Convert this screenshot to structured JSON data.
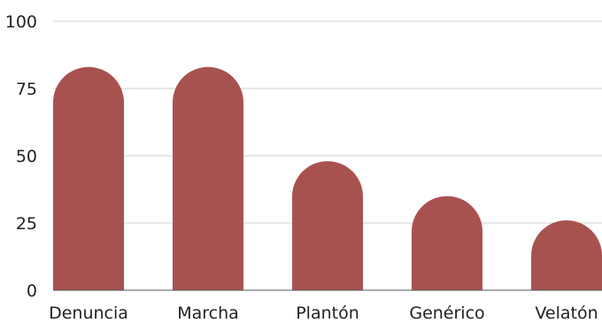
{
  "chart_data": {
    "type": "bar",
    "categories": [
      "Denuncia",
      "Marcha",
      "Plantón",
      "Genérico",
      "Velatón"
    ],
    "values": [
      83,
      83,
      48,
      35,
      26
    ],
    "ylim": [
      0,
      100
    ],
    "yticks": [
      0,
      25,
      50,
      75,
      100
    ],
    "grid": true,
    "legend": "none",
    "bar_color": "#a85250",
    "bar_shape": "rounded-top"
  }
}
